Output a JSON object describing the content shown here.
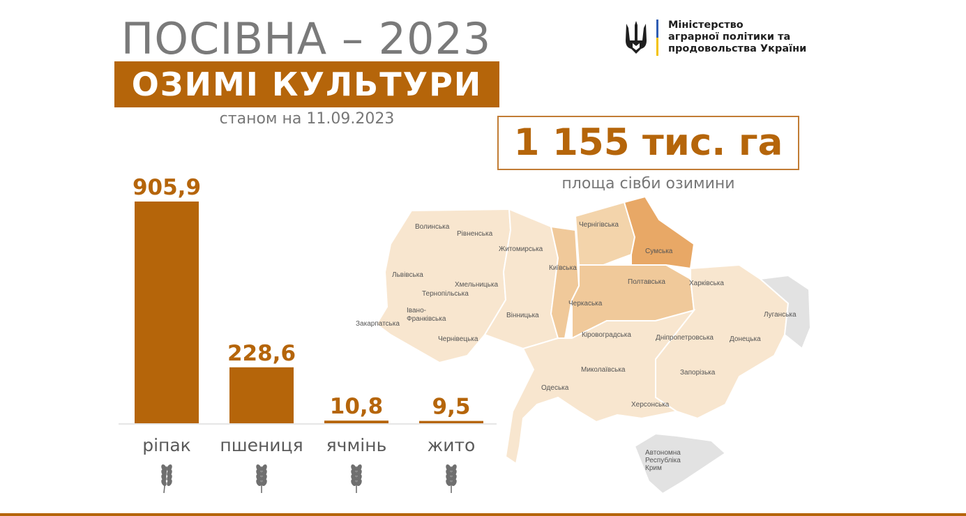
{
  "header": {
    "title": "ПОСІВНА – 2023",
    "banner": "ОЗИМІ КУЛЬТУРИ",
    "date": "станом на 11.09.2023"
  },
  "ministry": {
    "line1": "Міністерство",
    "line2": "аграрної політики та",
    "line3": "продовольства України",
    "flag_colors": [
      "#2f5db3",
      "#f3c200"
    ]
  },
  "total": {
    "value": "1 155 тис. га",
    "caption": "площа сівби озимини"
  },
  "colors": {
    "accent": "#b5650a",
    "map_light": "#f8e6cf",
    "map_mid": "#f0c99a",
    "map_dark": "#e8a866",
    "map_occupied": "#e2e2e2"
  },
  "chart_data": {
    "type": "bar",
    "categories": [
      "ріпак",
      "пшениця",
      "ячмінь",
      "жито"
    ],
    "values": [
      905.9,
      228.6,
      10.8,
      9.5
    ],
    "value_labels": [
      "905,9",
      "228,6",
      "10,8",
      "9,5"
    ],
    "icons": [
      "rapeseed-icon",
      "wheat-icon",
      "barley-icon",
      "rye-icon"
    ],
    "ylim": [
      0,
      905.9
    ]
  },
  "map": {
    "regions": [
      "Волинська",
      "Рівненська",
      "Житомирська",
      "Чернігівська",
      "Сумська",
      "Львівська",
      "Тернопільська",
      "Хмельницька",
      "Київська",
      "Полтавська",
      "Харківська",
      "Луганська",
      "Закарпатська",
      "Івано-Франківська",
      "Вінницька",
      "Черкаська",
      "Чернівецька",
      "Кіровоградська",
      "Дніпропетровська",
      "Донецька",
      "Миколаївська",
      "Одеська",
      "Запорізька",
      "Херсонська"
    ],
    "crimea": [
      "Автономна",
      "Республіка",
      "Крим"
    ]
  }
}
